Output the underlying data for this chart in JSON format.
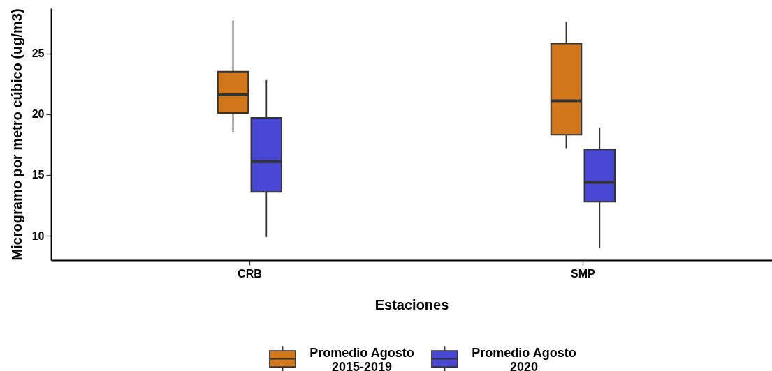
{
  "chart_data": {
    "type": "box",
    "xlabel": "Estaciones",
    "ylabel": "Microgramo por metro cúbico (ug/m3)",
    "categories": [
      "CRB",
      "SMP"
    ],
    "series": [
      {
        "name": "Promedio Agosto 2015-2019",
        "color": "#d2761b",
        "boxes": [
          {
            "low": 18.5,
            "q1": 20.1,
            "median": 21.6,
            "q3": 23.5,
            "high": 27.7
          },
          {
            "low": 17.2,
            "q1": 18.3,
            "median": 21.1,
            "q3": 25.8,
            "high": 27.6
          }
        ]
      },
      {
        "name": "Promedio Agosto 2020",
        "color": "#4847d4",
        "boxes": [
          {
            "low": 9.9,
            "q1": 13.6,
            "median": 16.1,
            "q3": 19.7,
            "high": 22.8
          },
          {
            "low": 9.0,
            "q1": 12.8,
            "median": 14.4,
            "q3": 17.1,
            "high": 18.9
          }
        ]
      }
    ],
    "ylim": [
      8,
      28.7
    ],
    "yticks": [
      10,
      15,
      20,
      25
    ],
    "grid": false,
    "legend": "bottom"
  }
}
